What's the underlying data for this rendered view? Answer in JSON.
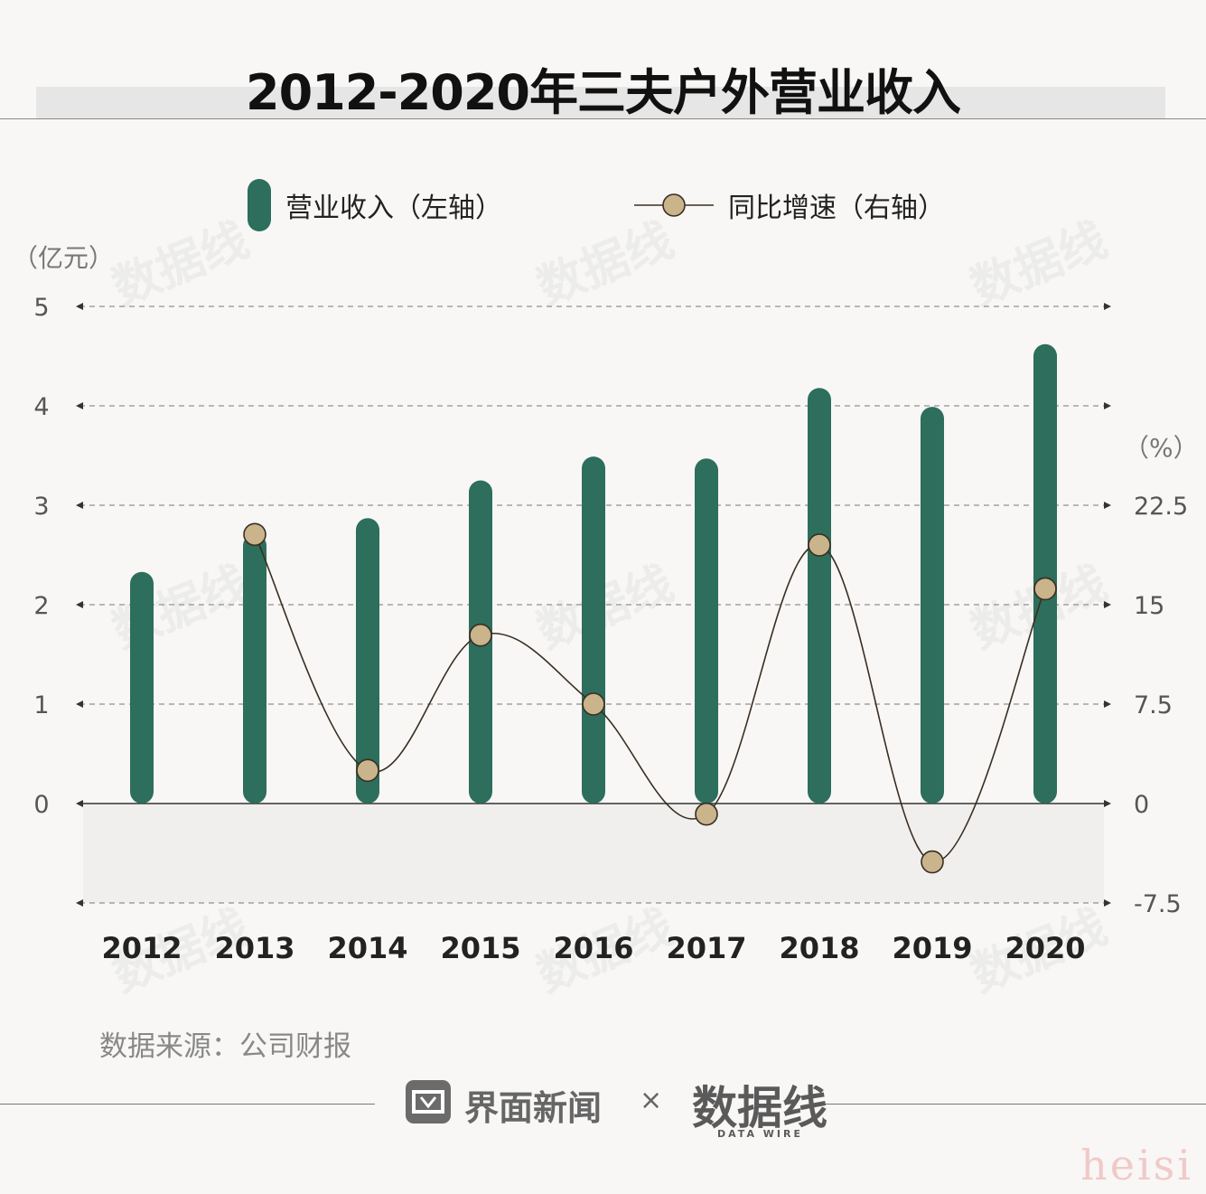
{
  "title": "2012-2020年三夫户外营业收入",
  "legend": {
    "bar_label": "营业收入（左轴）",
    "line_label": "同比增速（右轴）"
  },
  "left_unit": "（亿元）",
  "right_unit": "（%）",
  "source": "数据来源：公司财报",
  "footer": {
    "brand_left": "界面新闻",
    "times": "×",
    "brand_right": "数据线",
    "brand_right_sub": "DATA WIRE",
    "signature": "heisi"
  },
  "watermark": "数据线",
  "colors": {
    "bar": "#2d6e5d",
    "line": "#3a2e22",
    "marker_fill": "#c9b48c",
    "marker_stroke": "#3a2e22",
    "negative_band": "#f0efee"
  },
  "chart_data": {
    "type": "bar+line",
    "categories": [
      "2012",
      "2013",
      "2014",
      "2015",
      "2016",
      "2017",
      "2018",
      "2019",
      "2020"
    ],
    "series": [
      {
        "name": "营业收入（左轴）",
        "type": "bar",
        "axis": "left",
        "values": [
          2.33,
          2.71,
          2.87,
          3.25,
          3.49,
          3.47,
          4.18,
          3.99,
          4.62
        ]
      },
      {
        "name": "同比增速（右轴）",
        "type": "line",
        "axis": "right",
        "values": [
          null,
          20.3,
          2.5,
          12.7,
          7.5,
          -0.8,
          19.5,
          -4.4,
          16.2
        ]
      }
    ],
    "y_left": {
      "min": -1,
      "max": 5,
      "ticks": [
        0,
        1,
        2,
        3,
        4,
        5
      ],
      "tick_labels": [
        "0",
        "1",
        "2",
        "3",
        "4",
        "5"
      ]
    },
    "y_right": {
      "min": -7.5,
      "max": 37.5,
      "ticks": [
        -7.5,
        0,
        7.5,
        15,
        22.5
      ],
      "tick_labels": [
        "-7.5",
        "0",
        "7.5",
        "15",
        "22.5"
      ]
    },
    "grid": true,
    "legend_position": "top"
  }
}
